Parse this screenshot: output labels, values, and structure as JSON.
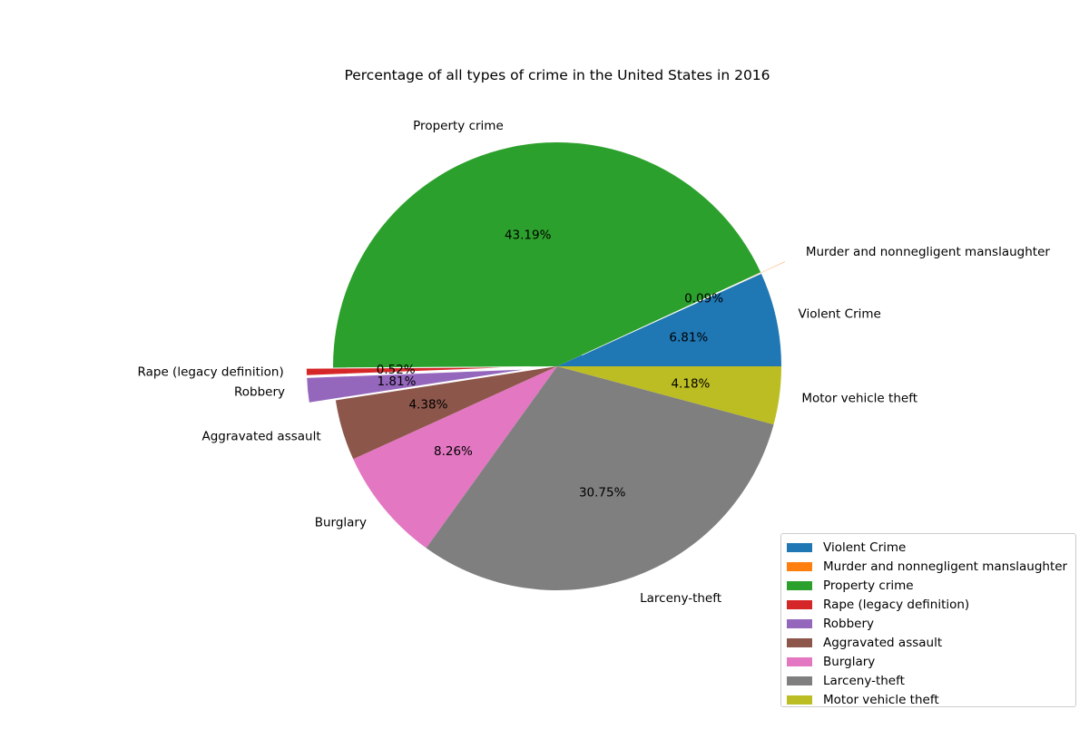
{
  "chart_data": {
    "type": "pie",
    "title": "Percentage of all types of crime in the United States in 2016",
    "slices": [
      {
        "label": "Violent Crime",
        "value": 6.81,
        "pct_label": "6.81%",
        "color": "#1f77b4",
        "exploded": false
      },
      {
        "label": "Murder and nonnegligent manslaughter",
        "value": 0.09,
        "pct_label": "0.09%",
        "color": "#ff7f0e",
        "exploded": true
      },
      {
        "label": "Property crime",
        "value": 43.19,
        "pct_label": "43.19%",
        "color": "#2ca02c",
        "exploded": false
      },
      {
        "label": "Rape (legacy definition)",
        "value": 0.52,
        "pct_label": "0.52%",
        "color": "#d62728",
        "exploded": true
      },
      {
        "label": "Robbery",
        "value": 1.81,
        "pct_label": "1.81%",
        "color": "#9467bd",
        "exploded": true
      },
      {
        "label": "Aggravated assault",
        "value": 4.38,
        "pct_label": "4.38%",
        "color": "#8c564b",
        "exploded": false
      },
      {
        "label": "Burglary",
        "value": 8.26,
        "pct_label": "8.26%",
        "color": "#e377c2",
        "exploded": false
      },
      {
        "label": "Larceny-theft",
        "value": 30.75,
        "pct_label": "30.75%",
        "color": "#7f7f7f",
        "exploded": false
      },
      {
        "label": "Motor vehicle theft",
        "value": 4.18,
        "pct_label": "4.18%",
        "color": "#bcbd22",
        "exploded": false
      }
    ],
    "legend": {
      "placement": "bottom-right"
    }
  }
}
